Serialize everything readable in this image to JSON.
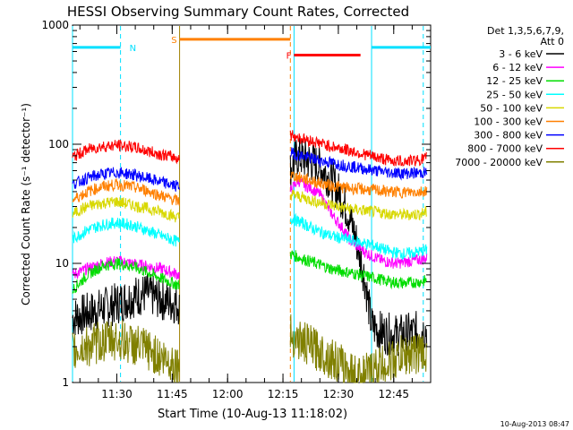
{
  "chart_data": {
    "type": "line",
    "title": "HESSI Observing Summary Count Rates, Corrected",
    "xlabel": "Start Time (10-Aug-13 11:18:02)",
    "ylabel": "Corrected Count Rate (s⁻¹ detector⁻¹)",
    "ylog": true,
    "ylim": [
      1,
      1000
    ],
    "y_ticks": [
      {
        "value": 1,
        "label": "1"
      },
      {
        "value": 10,
        "label": "10"
      },
      {
        "value": 100,
        "label": "100"
      },
      {
        "value": 1000,
        "label": "1000"
      }
    ],
    "xlim": [
      "11:18",
      "12:55"
    ],
    "x_ticks": [
      "11:30",
      "11:45",
      "12:00",
      "12:15",
      "12:30",
      "12:45"
    ],
    "legend": {
      "position": "right",
      "header": [
        "Det 1,3,5,6,7,9,",
        "Att 0"
      ],
      "entries": [
        {
          "label": "3 - 6 keV",
          "color": "#000000"
        },
        {
          "label": "6 - 12 keV",
          "color": "#ff00ff"
        },
        {
          "label": "12 - 25 keV",
          "color": "#00dd00"
        },
        {
          "label": "25 - 50 keV",
          "color": "#00ffff"
        },
        {
          "label": "50 - 100 keV",
          "color": "#d8d800"
        },
        {
          "label": "100 - 300 keV",
          "color": "#ff8000"
        },
        {
          "label": "300 - 800 keV",
          "color": "#0000ff"
        },
        {
          "label": "800 - 7000 keV",
          "color": "#ff0000"
        },
        {
          "label": "7000 - 20000 keV",
          "color": "#808000"
        }
      ]
    },
    "gaps": [
      [
        "11:47",
        "12:17"
      ]
    ],
    "series": [
      {
        "name": "3 - 6 keV",
        "color": "#000000",
        "segments": [
          {
            "x": [
              "11:18",
              "11:22",
              "11:26",
              "11:30",
              "11:34",
              "11:38",
              "11:42",
              "11:47"
            ],
            "y": [
              3.5,
              3.8,
              4.2,
              4.6,
              5.2,
              5.6,
              5.0,
              4.5
            ]
          },
          {
            "x": [
              "12:17",
              "12:19",
              "12:21",
              "12:23",
              "12:25",
              "12:27",
              "12:29",
              "12:31",
              "12:33",
              "12:35",
              "12:37",
              "12:39",
              "12:42",
              "12:46",
              "12:50",
              "12:54"
            ],
            "y": [
              60,
              80,
              75,
              70,
              65,
              55,
              45,
              35,
              25,
              15,
              8,
              3,
              2.6,
              2.5,
              2.6,
              2.8
            ]
          }
        ]
      },
      {
        "name": "6 - 12 keV",
        "color": "#ff00ff",
        "segments": [
          {
            "x": [
              "11:18",
              "11:22",
              "11:26",
              "11:30",
              "11:34",
              "11:38",
              "11:42",
              "11:47"
            ],
            "y": [
              8,
              9,
              10,
              10.5,
              10,
              9.5,
              9,
              8
            ]
          },
          {
            "x": [
              "12:17",
              "12:19",
              "12:21",
              "12:23",
              "12:25",
              "12:27",
              "12:29",
              "12:31",
              "12:33",
              "12:35",
              "12:38",
              "12:42",
              "12:46",
              "12:50",
              "12:54"
            ],
            "y": [
              40,
              50,
              45,
              42,
              38,
              30,
              24,
              20,
              16,
              14,
              12,
              10.5,
              10,
              10.5,
              11
            ]
          }
        ]
      },
      {
        "name": "12 - 25 keV",
        "color": "#00dd00",
        "segments": [
          {
            "x": [
              "11:18",
              "11:22",
              "11:26",
              "11:30",
              "11:34",
              "11:38",
              "11:42",
              "11:47"
            ],
            "y": [
              6,
              8,
              9.5,
              10,
              9.5,
              8.5,
              7.5,
              6.5
            ]
          },
          {
            "x": [
              "12:17",
              "12:20",
              "12:24",
              "12:28",
              "12:32",
              "12:36",
              "12:40",
              "12:44",
              "12:48",
              "12:52",
              "12:54"
            ],
            "y": [
              12,
              11,
              10,
              9,
              8.5,
              8,
              7.5,
              7,
              6.8,
              7,
              7.2
            ]
          }
        ]
      },
      {
        "name": "25 - 50 keV",
        "color": "#00ffff",
        "segments": [
          {
            "x": [
              "11:18",
              "11:22",
              "11:26",
              "11:30",
              "11:34",
              "11:38",
              "11:42",
              "11:47"
            ],
            "y": [
              16,
              19,
              21,
              22,
              21,
              19,
              17,
              15
            ]
          },
          {
            "x": [
              "12:17",
              "12:20",
              "12:24",
              "12:28",
              "12:32",
              "12:36",
              "12:40",
              "12:44",
              "12:48",
              "12:52",
              "12:54"
            ],
            "y": [
              24,
              22,
              19,
              17,
              16,
              15,
              14,
              12.5,
              12,
              12.5,
              13
            ]
          }
        ]
      },
      {
        "name": "50 - 100 keV",
        "color": "#d8d800",
        "segments": [
          {
            "x": [
              "11:18",
              "11:22",
              "11:26",
              "11:30",
              "11:34",
              "11:38",
              "11:42",
              "11:47"
            ],
            "y": [
              26,
              30,
              32,
              33,
              31,
              29,
              27,
              24
            ]
          },
          {
            "x": [
              "12:17",
              "12:20",
              "12:24",
              "12:28",
              "12:32",
              "12:36",
              "12:40",
              "12:44",
              "12:48",
              "12:52",
              "12:54"
            ],
            "y": [
              38,
              36,
              33,
              31,
              29,
              28,
              27,
              26,
              25.5,
              26,
              27
            ]
          }
        ]
      },
      {
        "name": "100 - 300 keV",
        "color": "#ff8000",
        "segments": [
          {
            "x": [
              "11:18",
              "11:22",
              "11:26",
              "11:30",
              "11:34",
              "11:38",
              "11:42",
              "11:47"
            ],
            "y": [
              34,
              40,
              44,
              46,
              44,
              41,
              37,
              33
            ]
          },
          {
            "x": [
              "12:17",
              "12:20",
              "12:24",
              "12:28",
              "12:32",
              "12:36",
              "12:40",
              "12:44",
              "12:48",
              "12:52",
              "12:54"
            ],
            "y": [
              55,
              52,
              48,
              45,
              43,
              42,
              41,
              40,
              39.5,
              40,
              41
            ]
          }
        ]
      },
      {
        "name": "300 - 800 keV",
        "color": "#0000ff",
        "segments": [
          {
            "x": [
              "11:18",
              "11:22",
              "11:26",
              "11:30",
              "11:34",
              "11:38",
              "11:42",
              "11:47"
            ],
            "y": [
              46,
              52,
              56,
              58,
              56,
              52,
              48,
              44
            ]
          },
          {
            "x": [
              "12:17",
              "12:20",
              "12:24",
              "12:28",
              "12:32",
              "12:36",
              "12:40",
              "12:44",
              "12:48",
              "12:52",
              "12:54"
            ],
            "y": [
              85,
              80,
              74,
              70,
              66,
              63,
              60,
              58,
              57,
              57.5,
              58
            ]
          }
        ]
      },
      {
        "name": "800 - 7000 keV",
        "color": "#ff0000",
        "segments": [
          {
            "x": [
              "11:18",
              "11:22",
              "11:26",
              "11:30",
              "11:34",
              "11:38",
              "11:42",
              "11:47"
            ],
            "y": [
              78,
              90,
              96,
              98,
              95,
              88,
              82,
              76
            ]
          },
          {
            "x": [
              "12:17",
              "12:20",
              "12:24",
              "12:28",
              "12:32",
              "12:36",
              "12:40",
              "12:44",
              "12:48",
              "12:52",
              "12:54"
            ],
            "y": [
              120,
              112,
              104,
              96,
              90,
              84,
              78,
              73,
              72,
              74,
              77
            ]
          }
        ]
      },
      {
        "name": "7000 - 20000 keV",
        "color": "#808000",
        "segments": [
          {
            "x": [
              "11:18",
              "11:22",
              "11:26",
              "11:30",
              "11:34",
              "11:38",
              "11:42",
              "11:47"
            ],
            "y": [
              1.8,
              2.0,
              2.2,
              2.3,
              2.1,
              1.9,
              1.6,
              1.4
            ]
          },
          {
            "x": [
              "12:17",
              "12:20",
              "12:24",
              "12:28",
              "12:32",
              "12:36",
              "12:40",
              "12:44",
              "12:48",
              "12:52",
              "12:54"
            ],
            "y": [
              2.5,
              2.2,
              1.9,
              1.6,
              1.3,
              1.1,
              1.3,
              1.5,
              1.7,
              1.8,
              1.7
            ]
          }
        ]
      }
    ],
    "annotations": [
      {
        "kind": "interval",
        "label": "N",
        "color": "#00e0ff",
        "y": 650,
        "segments": [
          [
            "11:18",
            "11:31"
          ],
          [
            "12:39",
            "12:55"
          ]
        ]
      },
      {
        "kind": "interval",
        "label": "S",
        "color": "#ff8000",
        "y": 760,
        "segments": [
          [
            "11:47",
            "12:17"
          ]
        ]
      },
      {
        "kind": "interval",
        "label": "F",
        "color": "#ff0000",
        "y": 560,
        "segments": [
          [
            "12:18",
            "12:36"
          ]
        ]
      }
    ],
    "vlines": [
      {
        "x": "11:18",
        "color": "#00e0ff",
        "style": "solid"
      },
      {
        "x": "11:31",
        "color": "#00e0ff",
        "style": "dashed"
      },
      {
        "x": "11:47",
        "color": "#a08000",
        "style": "solid"
      },
      {
        "x": "12:17",
        "color": "#ff8000",
        "style": "dashed"
      },
      {
        "x": "12:18",
        "color": "#00e0ff",
        "style": "solid"
      },
      {
        "x": "12:39",
        "color": "#00e0ff",
        "style": "solid"
      },
      {
        "x": "12:53",
        "color": "#00e0ff",
        "style": "dashed"
      }
    ],
    "footer": "10-Aug-2013 08:47"
  }
}
